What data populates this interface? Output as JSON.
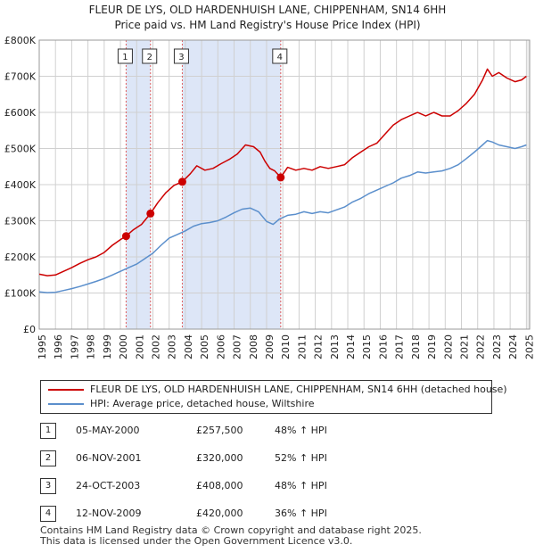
{
  "title_line1": "FLEUR DE LYS, OLD HARDENHUISH LANE, CHIPPENHAM, SN14 6HH",
  "title_line2": "Price paid vs. HM Land Registry's House Price Index (HPI)",
  "legend": {
    "property": "FLEUR DE LYS, OLD HARDENHUISH LANE, CHIPPENHAM, SN14 6HH (detached house)",
    "hpi": "HPI: Average price, detached house, Wiltshire"
  },
  "colors": {
    "property": "#cc0000",
    "hpi": "#5b8fcc",
    "shade": "#dde6f7",
    "grid": "#d0d0d0",
    "vline": "#e06060"
  },
  "sales": [
    {
      "num": "1",
      "date": "05-MAY-2000",
      "price": "£257,500",
      "hpi_change": "48% ↑ HPI"
    },
    {
      "num": "2",
      "date": "06-NOV-2001",
      "price": "£320,000",
      "hpi_change": "52% ↑ HPI"
    },
    {
      "num": "3",
      "date": "24-OCT-2003",
      "price": "£408,000",
      "hpi_change": "48% ↑ HPI"
    },
    {
      "num": "4",
      "date": "12-NOV-2009",
      "price": "£420,000",
      "hpi_change": "36% ↑ HPI"
    }
  ],
  "footer_line1": "Contains HM Land Registry data © Crown copyright and database right 2025.",
  "footer_line2": "This data is licensed under the Open Government Licence v3.0.",
  "chart_data": {
    "type": "line",
    "title": "Price paid vs. HM Land Registry's House Price Index (HPI)",
    "xlabel": "",
    "ylabel": "",
    "xlim": [
      1995,
      2025.2
    ],
    "ylim": [
      0,
      800000
    ],
    "x_ticks": [
      1995,
      1996,
      1997,
      1998,
      1999,
      2000,
      2001,
      2002,
      2003,
      2004,
      2005,
      2006,
      2007,
      2008,
      2009,
      2010,
      2011,
      2012,
      2013,
      2014,
      2015,
      2016,
      2017,
      2018,
      2019,
      2020,
      2021,
      2022,
      2023,
      2024,
      2025
    ],
    "y_ticks": [
      {
        "value": 0,
        "label": "£0"
      },
      {
        "value": 100000,
        "label": "£100K"
      },
      {
        "value": 200000,
        "label": "£200K"
      },
      {
        "value": 300000,
        "label": "£300K"
      },
      {
        "value": 400000,
        "label": "£400K"
      },
      {
        "value": 500000,
        "label": "£500K"
      },
      {
        "value": 600000,
        "label": "£600K"
      },
      {
        "value": 700000,
        "label": "£700K"
      },
      {
        "value": 800000,
        "label": "£800K"
      }
    ],
    "grid": true,
    "shaded_ranges": [
      [
        2000.35,
        2001.85
      ],
      [
        2003.81,
        2009.87
      ]
    ],
    "sale_markers": [
      {
        "label": "1",
        "x": 2000.35,
        "y": 257500
      },
      {
        "label": "2",
        "x": 2001.85,
        "y": 320000
      },
      {
        "label": "3",
        "x": 2003.81,
        "y": 408000
      },
      {
        "label": "4",
        "x": 2009.87,
        "y": 420000
      }
    ],
    "series": [
      {
        "name": "FLEUR DE LYS, OLD HARDENHUISH LANE, CHIPPENHAM, SN14 6HH (detached house)",
        "x": [
          1995.0,
          1995.5,
          1996.0,
          1996.5,
          1997.0,
          1997.5,
          1998.0,
          1998.5,
          1999.0,
          1999.5,
          2000.0,
          2000.35,
          2000.8,
          2001.3,
          2001.85,
          2002.3,
          2002.8,
          2003.3,
          2003.81,
          2004.3,
          2004.7,
          2005.2,
          2005.7,
          2006.2,
          2006.7,
          2007.2,
          2007.7,
          2008.2,
          2008.6,
          2008.9,
          2009.2,
          2009.5,
          2009.87,
          2010.3,
          2010.8,
          2011.3,
          2011.8,
          2012.3,
          2012.8,
          2013.3,
          2013.8,
          2014.3,
          2014.8,
          2015.3,
          2015.8,
          2016.3,
          2016.8,
          2017.3,
          2017.8,
          2018.3,
          2018.8,
          2019.3,
          2019.8,
          2020.3,
          2020.8,
          2021.3,
          2021.8,
          2022.3,
          2022.6,
          2022.9,
          2023.3,
          2023.8,
          2024.3,
          2024.7,
          2025.0
        ],
        "y": [
          152000,
          148000,
          150000,
          160000,
          170000,
          182000,
          192000,
          200000,
          212000,
          232000,
          248000,
          257500,
          275000,
          290000,
          320000,
          350000,
          378000,
          398000,
          408000,
          430000,
          452000,
          440000,
          445000,
          458000,
          470000,
          485000,
          510000,
          505000,
          490000,
          465000,
          445000,
          438000,
          420000,
          448000,
          440000,
          445000,
          440000,
          450000,
          445000,
          450000,
          455000,
          475000,
          490000,
          505000,
          515000,
          540000,
          565000,
          580000,
          590000,
          600000,
          590000,
          600000,
          590000,
          590000,
          605000,
          625000,
          650000,
          690000,
          720000,
          700000,
          710000,
          695000,
          685000,
          690000,
          700000
        ]
      },
      {
        "name": "HPI: Average price, detached house, Wiltshire",
        "x": [
          1995.0,
          1995.5,
          1996.0,
          1996.5,
          1997.0,
          1997.5,
          1998.0,
          1998.5,
          1999.0,
          1999.5,
          2000.0,
          2000.5,
          2001.0,
          2001.5,
          2002.0,
          2002.5,
          2003.0,
          2003.5,
          2004.0,
          2004.5,
          2005.0,
          2005.5,
          2006.0,
          2006.5,
          2007.0,
          2007.5,
          2008.0,
          2008.5,
          2009.0,
          2009.4,
          2009.8,
          2010.3,
          2010.8,
          2011.3,
          2011.8,
          2012.3,
          2012.8,
          2013.3,
          2013.8,
          2014.3,
          2014.8,
          2015.3,
          2015.8,
          2016.3,
          2016.8,
          2017.3,
          2017.8,
          2018.3,
          2018.8,
          2019.3,
          2019.8,
          2020.3,
          2020.8,
          2021.3,
          2021.8,
          2022.3,
          2022.6,
          2022.9,
          2023.3,
          2023.8,
          2024.3,
          2024.7,
          2025.0
        ],
        "y": [
          103000,
          101000,
          102000,
          107000,
          112000,
          118000,
          125000,
          132000,
          140000,
          150000,
          160000,
          170000,
          180000,
          195000,
          210000,
          232000,
          252000,
          262000,
          272000,
          285000,
          292000,
          295000,
          300000,
          310000,
          322000,
          332000,
          335000,
          325000,
          298000,
          290000,
          305000,
          315000,
          318000,
          325000,
          320000,
          325000,
          322000,
          330000,
          338000,
          352000,
          362000,
          375000,
          385000,
          395000,
          405000,
          418000,
          425000,
          435000,
          432000,
          435000,
          438000,
          445000,
          455000,
          472000,
          490000,
          510000,
          522000,
          518000,
          510000,
          505000,
          500000,
          505000,
          510000
        ]
      }
    ]
  }
}
